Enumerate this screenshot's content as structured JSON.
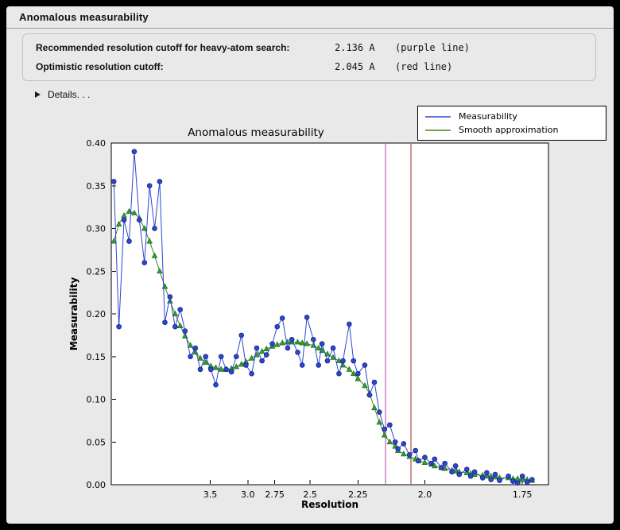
{
  "window": {
    "title": "Anomalous measurability"
  },
  "info": {
    "rows": [
      {
        "label": "Recommended resolution cutoff for heavy-atom search:",
        "value": "2.136 A",
        "note": "(purple line)"
      },
      {
        "label": "Optimistic resolution cutoff:",
        "value": "2.045 A",
        "note": "(red line)"
      }
    ],
    "details_label": "Details. . ."
  },
  "legend": {
    "entries": [
      {
        "label": "Measurability",
        "color": "#2c47cf"
      },
      {
        "label": "Smooth approximation",
        "color": "#4d801f"
      }
    ]
  },
  "chart_data": {
    "type": "line",
    "title": "Anomalous measurability",
    "xlabel": "Resolution",
    "ylabel": "Measurability",
    "grid": false,
    "legend_position": "top-right outside axes",
    "x_axis": {
      "unit": "Angstrom",
      "scale": "inverse_d_squared",
      "tick_labels": [
        "3.5",
        "3.0",
        "2.75",
        "2.5",
        "2.25",
        "2.0",
        "1.75"
      ],
      "range_s": [
        0.004,
        0.347
      ]
    },
    "y_axis": {
      "tick_labels": [
        "0.00",
        "0.05",
        "0.10",
        "0.15",
        "0.20",
        "0.25",
        "0.30",
        "0.35",
        "0.40"
      ],
      "range": [
        0.0,
        0.4
      ]
    },
    "vlines": [
      {
        "x": 2.136,
        "color": "#aa3fa5",
        "name": "recommended-cutoff-line-purple"
      },
      {
        "x": 2.045,
        "color": "#9e2b25",
        "name": "optimistic-cutoff-line-red"
      }
    ],
    "resolution_A": [
      12.91,
      10.0,
      8.45,
      7.45,
      6.74,
      6.2,
      5.77,
      5.42,
      5.13,
      4.88,
      4.66,
      4.47,
      4.3,
      4.15,
      4.02,
      3.89,
      3.78,
      3.68,
      3.58,
      3.49,
      3.41,
      3.33,
      3.26,
      3.19,
      3.13,
      3.07,
      3.02,
      2.96,
      2.91,
      2.86,
      2.82,
      2.77,
      2.73,
      2.69,
      2.65,
      2.62,
      2.58,
      2.55,
      2.52,
      2.48,
      2.45,
      2.43,
      2.4,
      2.37,
      2.34,
      2.32,
      2.29,
      2.27,
      2.25,
      2.22,
      2.2,
      2.18,
      2.16,
      2.14,
      2.12,
      2.1,
      2.09,
      2.07,
      2.05,
      2.03,
      2.02,
      2.0,
      1.98,
      1.97,
      1.95,
      1.94,
      1.92,
      1.91,
      1.9,
      1.88,
      1.87,
      1.86,
      1.84,
      1.83,
      1.82,
      1.81,
      1.8,
      1.78,
      1.77,
      1.76,
      1.75,
      1.74,
      1.73
    ],
    "series": [
      {
        "name": "Measurability",
        "color": "#2c47cf",
        "marker": "circle",
        "marker_color": "#2c47cf",
        "marker_edge": "#16247f",
        "values": [
          0.355,
          0.185,
          0.31,
          0.285,
          0.39,
          0.31,
          0.26,
          0.35,
          0.3,
          0.355,
          0.19,
          0.22,
          0.185,
          0.205,
          0.18,
          0.15,
          0.16,
          0.135,
          0.15,
          0.135,
          0.117,
          0.15,
          0.135,
          0.132,
          0.15,
          0.175,
          0.14,
          0.13,
          0.16,
          0.145,
          0.152,
          0.165,
          0.185,
          0.195,
          0.16,
          0.17,
          0.155,
          0.14,
          0.196,
          0.17,
          0.14,
          0.165,
          0.145,
          0.16,
          0.13,
          0.145,
          0.188,
          0.145,
          0.13,
          0.14,
          0.105,
          0.12,
          0.085,
          0.065,
          0.07,
          0.05,
          0.042,
          0.048,
          0.035,
          0.04,
          0.028,
          0.032,
          0.025,
          0.03,
          0.02,
          0.025,
          0.015,
          0.022,
          0.012,
          0.018,
          0.01,
          0.015,
          0.008,
          0.014,
          0.006,
          0.012,
          0.005,
          0.01,
          0.004,
          0.002,
          0.01,
          0.003,
          0.006
        ]
      },
      {
        "name": "Smooth approximation",
        "color": "#4d801f",
        "marker": "triangle",
        "marker_color": "#2f9e2f",
        "marker_edge": "#1d621d",
        "values": [
          0.285,
          0.305,
          0.315,
          0.32,
          0.318,
          0.312,
          0.3,
          0.285,
          0.268,
          0.25,
          0.232,
          0.215,
          0.2,
          0.186,
          0.174,
          0.163,
          0.155,
          0.148,
          0.143,
          0.139,
          0.137,
          0.135,
          0.135,
          0.136,
          0.138,
          0.141,
          0.144,
          0.148,
          0.152,
          0.156,
          0.159,
          0.162,
          0.164,
          0.166,
          0.167,
          0.167,
          0.167,
          0.166,
          0.165,
          0.163,
          0.16,
          0.157,
          0.153,
          0.149,
          0.145,
          0.14,
          0.135,
          0.13,
          0.124,
          0.116,
          0.107,
          0.09,
          0.073,
          0.058,
          0.05,
          0.045,
          0.04,
          0.036,
          0.033,
          0.03,
          0.028,
          0.026,
          0.024,
          0.022,
          0.02,
          0.019,
          0.017,
          0.016,
          0.015,
          0.014,
          0.013,
          0.012,
          0.011,
          0.01,
          0.01,
          0.009,
          0.008,
          0.008,
          0.007,
          0.007,
          0.006,
          0.006,
          0.005
        ]
      }
    ]
  }
}
